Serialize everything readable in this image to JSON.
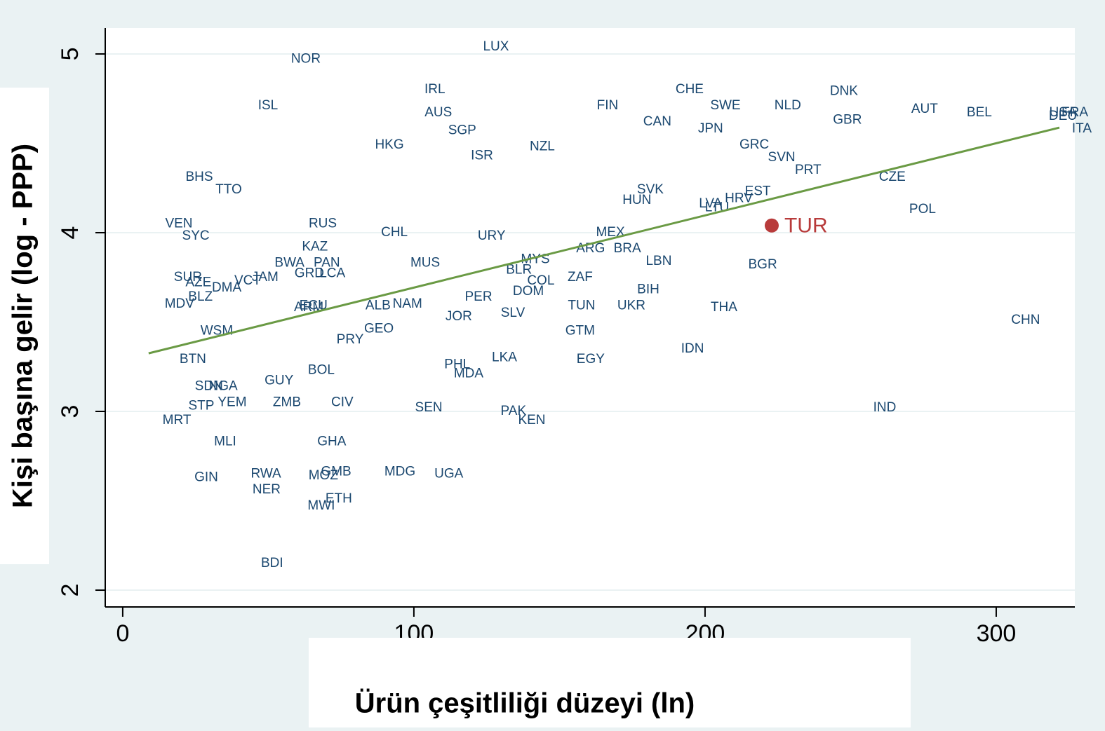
{
  "chart_data": {
    "type": "scatter",
    "labels": [
      "LUX",
      "NOR",
      "IRL",
      "ISL",
      "AUS",
      "SGP",
      "HKG",
      "ISR",
      "NZL",
      "FIN",
      "CHE",
      "SWE",
      "CAN",
      "JPN",
      "NLD",
      "DNK",
      "GBR",
      "AUT",
      "BEL",
      "USA",
      "DEU",
      "FRA",
      "ITA",
      "GRC",
      "SVN",
      "PRT",
      "CZE",
      "EST",
      "HRV",
      "LVA",
      "LTU",
      "SVK",
      "HUN",
      "POL",
      "MEX",
      "ARG",
      "BRA",
      "LBN",
      "BGR",
      "MYS",
      "BLR",
      "COL",
      "ZAF",
      "DOM",
      "BIH",
      "PER",
      "TUN",
      "UKR",
      "THA",
      "SLV",
      "JOR",
      "GTM",
      "CHN",
      "IDN",
      "EGY",
      "LKA",
      "PHL",
      "MDA",
      "URY",
      "CHL",
      "MUS",
      "RUS",
      "KAZ",
      "BWA",
      "PAN",
      "GRD",
      "LCA",
      "ALB",
      "NAM",
      "VEN",
      "SYC",
      "BHS",
      "TTO",
      "WSM",
      "PRY",
      "GEO",
      "BTN",
      "BOL",
      "GUY",
      "SDN",
      "NGA",
      "STP",
      "YEM",
      "ZMB",
      "CIV",
      "SEN",
      "PAK",
      "KEN",
      "IND",
      "MRT",
      "MLI",
      "GHA",
      "GIN",
      "RWA",
      "NER",
      "MOZ",
      "GMB",
      "MDG",
      "UGA",
      "MWI",
      "ETH",
      "BDI",
      "SUR",
      "AZE",
      "DMA",
      "VCT",
      "JAM",
      "MDV",
      "BLZ",
      "ARM",
      "ECU"
    ],
    "x": [
      128.2,
      62.9,
      107.2,
      49.9,
      108.4,
      116.6,
      91.6,
      123.4,
      144.1,
      166.5,
      194.7,
      207.0,
      183.6,
      201.9,
      228.4,
      247.7,
      248.9,
      275.4,
      294.2,
      322.9,
      322.9,
      327.0,
      329.4,
      216.9,
      226.3,
      235.4,
      264.3,
      218.1,
      211.6,
      201.9,
      204.1,
      181.2,
      176.6,
      274.7,
      167.5,
      160.7,
      173.3,
      184.1,
      219.8,
      141.7,
      136.1,
      143.6,
      157.1,
      139.3,
      180.5,
      122.2,
      157.6,
      174.7,
      206.5,
      134.0,
      115.4,
      157.1,
      310.1,
      195.7,
      160.7,
      131.1,
      114.9,
      118.8,
      126.7,
      93.3,
      103.9,
      68.7,
      66.0,
      57.3,
      70.1,
      64.1,
      72.0,
      87.7,
      97.8,
      19.3,
      25.1,
      26.3,
      36.4,
      32.3,
      78.1,
      88.0,
      24.1,
      68.2,
      53.7,
      29.6,
      34.5,
      27.0,
      37.6,
      56.4,
      75.4,
      105.1,
      134.2,
      140.5,
      261.7,
      18.6,
      35.2,
      71.8,
      28.7,
      49.2,
      49.4,
      68.9,
      73.3,
      95.2,
      112.0,
      68.2,
      74.2,
      51.3,
      22.4,
      26.0,
      35.7,
      42.9,
      48.9,
      19.5,
      26.7,
      63.9,
      65.5
    ],
    "y": [
      5.04,
      4.97,
      4.8,
      4.71,
      4.67,
      4.57,
      4.49,
      4.43,
      4.48,
      4.71,
      4.8,
      4.71,
      4.62,
      4.58,
      4.71,
      4.79,
      4.63,
      4.69,
      4.67,
      4.67,
      4.65,
      4.67,
      4.58,
      4.49,
      4.42,
      4.35,
      4.31,
      4.23,
      4.19,
      4.16,
      4.14,
      4.24,
      4.18,
      4.13,
      4.0,
      3.91,
      3.91,
      3.84,
      3.82,
      3.85,
      3.79,
      3.73,
      3.75,
      3.67,
      3.68,
      3.64,
      3.59,
      3.59,
      3.58,
      3.55,
      3.53,
      3.45,
      3.51,
      3.35,
      3.29,
      3.3,
      3.26,
      3.21,
      3.98,
      4.0,
      3.83,
      4.05,
      3.92,
      3.83,
      3.83,
      3.77,
      3.77,
      3.59,
      3.6,
      4.05,
      3.98,
      4.31,
      4.24,
      3.45,
      3.4,
      3.46,
      3.29,
      3.23,
      3.17,
      3.14,
      3.14,
      3.03,
      3.05,
      3.05,
      3.05,
      3.02,
      3.0,
      2.95,
      3.02,
      2.95,
      2.83,
      2.83,
      2.63,
      2.65,
      2.56,
      2.64,
      2.66,
      2.66,
      2.65,
      2.47,
      2.51,
      2.15,
      3.75,
      3.72,
      3.69,
      3.73,
      3.75,
      3.6,
      3.64,
      3.58,
      3.59
    ],
    "color": "#1a476f",
    "highlight": {
      "label": "TUR",
      "x": 222.9,
      "y": 4.04,
      "color": "#b83b3b"
    },
    "trend_line": {
      "x": [
        8.9,
        321.7
      ],
      "y": [
        3.325,
        4.588
      ],
      "color": "#6a9a44"
    },
    "xlim": [
      -6,
      327
    ],
    "ylim": [
      1.906,
      5.145
    ],
    "xticks": [
      0,
      100,
      200,
      300
    ],
    "yticks": [
      2,
      3,
      4,
      5
    ],
    "grid": true,
    "xlabel": "Ürün çeşitliliği düzeyi (ln)",
    "ylabel": "Kişi başına gelir  (log - PPP)"
  }
}
